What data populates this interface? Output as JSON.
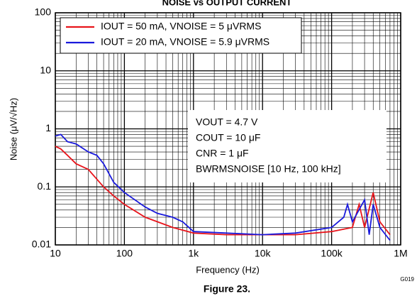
{
  "chart_data": {
    "type": "line",
    "title": "NOISE vs OUTPUT CURRENT",
    "xlabel": "Frequency (Hz)",
    "ylabel": "Noise (μV/√Hz)",
    "caption": "Figure 23.",
    "code": "G019",
    "log_x": true,
    "log_y": true,
    "grid": true,
    "legend": "upper left",
    "xlim": [
      10,
      1000000
    ],
    "ylim": [
      0.01,
      100
    ],
    "xticks": [
      10,
      100,
      {
        "value": 1000,
        "label": "1k"
      },
      {
        "value": 10000,
        "label": "10k"
      },
      {
        "value": 100000,
        "label": "100k"
      },
      {
        "value": 1000000,
        "label": "1M"
      }
    ],
    "yticks": [
      0.01,
      0.1,
      1,
      10,
      100
    ],
    "annotations": [
      "VOUT = 4.7 V",
      "COUT = 10 μF",
      "CNR = 1 μF",
      "BWRMSNOISE [10 Hz, 100 kHz]"
    ],
    "series": [
      {
        "name": "IOUT = 50 mA, VNOISE = 5 μVRMS",
        "color": "#e8141b",
        "x": [
          10,
          12,
          15,
          20,
          30,
          50,
          70,
          100,
          200,
          500,
          1000,
          3000,
          10000,
          30000,
          100000,
          200000,
          250000,
          300000,
          400000,
          500000,
          700000
        ],
        "values": [
          0.5,
          0.45,
          0.35,
          0.25,
          0.2,
          0.1,
          0.07,
          0.05,
          0.03,
          0.02,
          0.016,
          0.015,
          0.015,
          0.015,
          0.017,
          0.02,
          0.05,
          0.02,
          0.08,
          0.025,
          0.015
        ]
      },
      {
        "name": "IOUT = 20 mA, VNOISE = 5.9 μVRMS",
        "color": "#1a1adc",
        "x": [
          10,
          12,
          15,
          20,
          30,
          40,
          50,
          70,
          100,
          200,
          300,
          500,
          700,
          1000,
          3000,
          10000,
          30000,
          100000,
          150000,
          170000,
          200000,
          300000,
          350000,
          400000,
          500000,
          700000
        ],
        "values": [
          0.75,
          0.8,
          0.6,
          0.55,
          0.4,
          0.35,
          0.25,
          0.12,
          0.08,
          0.045,
          0.035,
          0.03,
          0.025,
          0.017,
          0.016,
          0.015,
          0.016,
          0.02,
          0.03,
          0.05,
          0.025,
          0.06,
          0.015,
          0.05,
          0.02,
          0.012
        ]
      }
    ]
  }
}
